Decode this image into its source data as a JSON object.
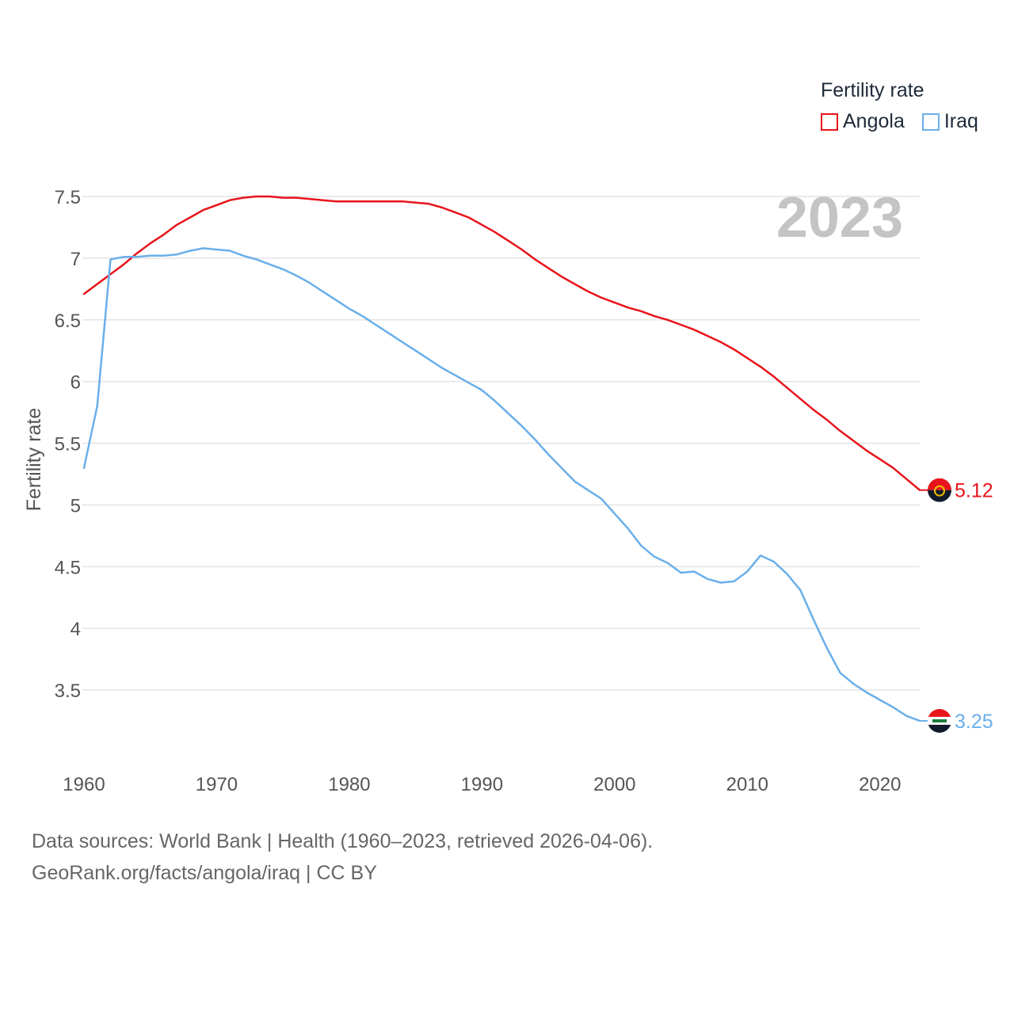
{
  "chart_data": {
    "type": "line",
    "year_label": "2023",
    "ylabel": "Fertility rate",
    "xlabel": "",
    "xlim": [
      1960,
      2023
    ],
    "ylim": [
      3.0,
      7.65
    ],
    "x_ticks": [
      1960,
      1970,
      1980,
      1990,
      2000,
      2010,
      2020
    ],
    "y_ticks": [
      3.5,
      4,
      4.5,
      5,
      5.5,
      6,
      6.5,
      7,
      7.5
    ],
    "legend": {
      "title": "Fertility rate",
      "position": "top-right"
    },
    "series": [
      {
        "name": "Angola",
        "color": "#e8141b",
        "end_label": "5.12",
        "flag_icon": "angola-flag-icon",
        "x": [
          1960,
          1961,
          1962,
          1963,
          1964,
          1965,
          1966,
          1967,
          1968,
          1969,
          1970,
          1971,
          1972,
          1973,
          1974,
          1975,
          1976,
          1977,
          1978,
          1979,
          1980,
          1981,
          1982,
          1983,
          1984,
          1985,
          1986,
          1987,
          1988,
          1989,
          1990,
          1991,
          1992,
          1993,
          1994,
          1995,
          1996,
          1997,
          1998,
          1999,
          2000,
          2001,
          2002,
          2003,
          2004,
          2005,
          2006,
          2007,
          2008,
          2009,
          2010,
          2011,
          2012,
          2013,
          2014,
          2015,
          2016,
          2017,
          2018,
          2019,
          2020,
          2021,
          2022,
          2023
        ],
        "values": [
          6.71,
          6.79,
          6.87,
          6.95,
          7.04,
          7.12,
          7.19,
          7.27,
          7.33,
          7.39,
          7.43,
          7.47,
          7.49,
          7.5,
          7.5,
          7.49,
          7.49,
          7.48,
          7.47,
          7.46,
          7.46,
          7.46,
          7.46,
          7.46,
          7.46,
          7.45,
          7.44,
          7.41,
          7.37,
          7.33,
          7.27,
          7.21,
          7.14,
          7.07,
          6.99,
          6.92,
          6.85,
          6.79,
          6.73,
          6.68,
          6.64,
          6.6,
          6.57,
          6.53,
          6.5,
          6.46,
          6.42,
          6.37,
          6.32,
          6.26,
          6.19,
          6.12,
          6.04,
          5.95,
          5.86,
          5.77,
          5.69,
          5.6,
          5.52,
          5.44,
          5.37,
          5.3,
          5.21,
          5.12
        ]
      },
      {
        "name": "Iraq",
        "color": "#6aafea",
        "end_label": "3.25",
        "flag_icon": "iraq-flag-icon",
        "x": [
          1960,
          1961,
          1962,
          1963,
          1964,
          1965,
          1966,
          1967,
          1968,
          1969,
          1970,
          1971,
          1972,
          1973,
          1974,
          1975,
          1976,
          1977,
          1978,
          1979,
          1980,
          1981,
          1982,
          1983,
          1984,
          1985,
          1986,
          1987,
          1988,
          1989,
          1990,
          1991,
          1992,
          1993,
          1994,
          1995,
          1996,
          1997,
          1998,
          1999,
          2000,
          2001,
          2002,
          2003,
          2004,
          2005,
          2006,
          2007,
          2008,
          2009,
          2010,
          2011,
          2012,
          2013,
          2014,
          2015,
          2016,
          2017,
          2018,
          2019,
          2020,
          2021,
          2022,
          2023
        ],
        "values": [
          5.3,
          5.8,
          6.99,
          7.01,
          7.01,
          7.02,
          7.02,
          7.03,
          7.06,
          7.08,
          7.07,
          7.06,
          7.02,
          6.99,
          6.95,
          6.91,
          6.86,
          6.8,
          6.73,
          6.66,
          6.59,
          6.53,
          6.46,
          6.39,
          6.32,
          6.25,
          6.18,
          6.11,
          6.05,
          5.99,
          5.93,
          5.84,
          5.74,
          5.64,
          5.53,
          5.41,
          5.3,
          5.19,
          5.12,
          5.05,
          4.93,
          4.81,
          4.67,
          4.58,
          4.53,
          4.45,
          4.46,
          4.4,
          4.37,
          4.38,
          4.46,
          4.59,
          4.54,
          4.44,
          4.31,
          4.07,
          3.84,
          3.64,
          3.55,
          3.48,
          3.42,
          3.36,
          3.29,
          3.25
        ]
      }
    ]
  },
  "footer": {
    "sources": "Data sources: World Bank | Health (1960–2023, retrieved 2026-04-06).",
    "link": "GeoRank.org/facts/angola/iraq | CC BY"
  }
}
